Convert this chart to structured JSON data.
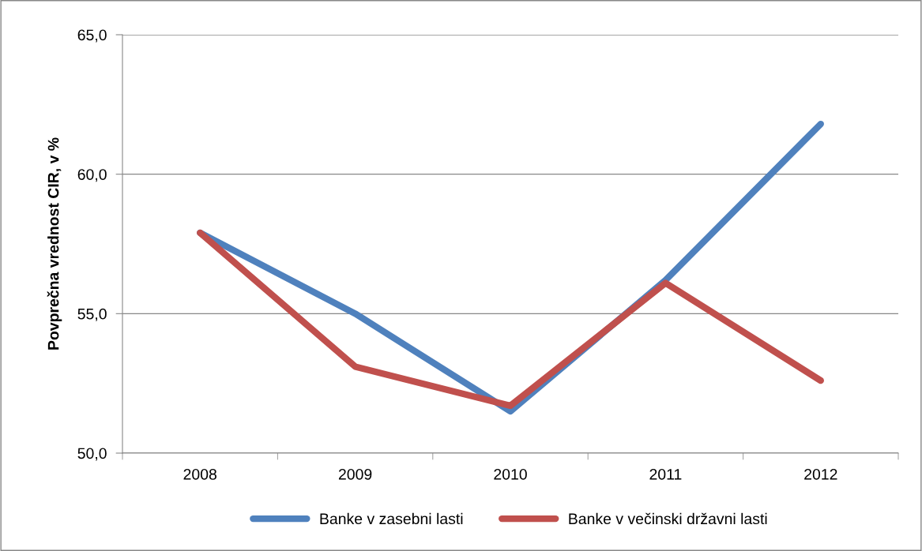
{
  "chart_data": {
    "type": "line",
    "ylabel": "Povprečna vrednost CIR, v %",
    "categories": [
      "2008",
      "2009",
      "2010",
      "2011",
      "2012"
    ],
    "series": [
      {
        "name": "Banke v zasebni lasti",
        "color": "#4f81bd",
        "values": [
          57.9,
          55.0,
          51.5,
          56.2,
          61.8
        ]
      },
      {
        "name": "Banke v večinski državni lasti",
        "color": "#c0504d",
        "values": [
          57.9,
          53.1,
          51.7,
          56.1,
          52.6
        ]
      }
    ],
    "ylim": [
      50,
      65
    ],
    "yticks": [
      {
        "value": 50,
        "label": "50,0"
      },
      {
        "value": 55,
        "label": "55,0"
      },
      {
        "value": 60,
        "label": "60,0"
      },
      {
        "value": 65,
        "label": "65,0"
      }
    ],
    "grid": "y",
    "legend": "bottom",
    "marker": "none",
    "line_style": "solid"
  }
}
